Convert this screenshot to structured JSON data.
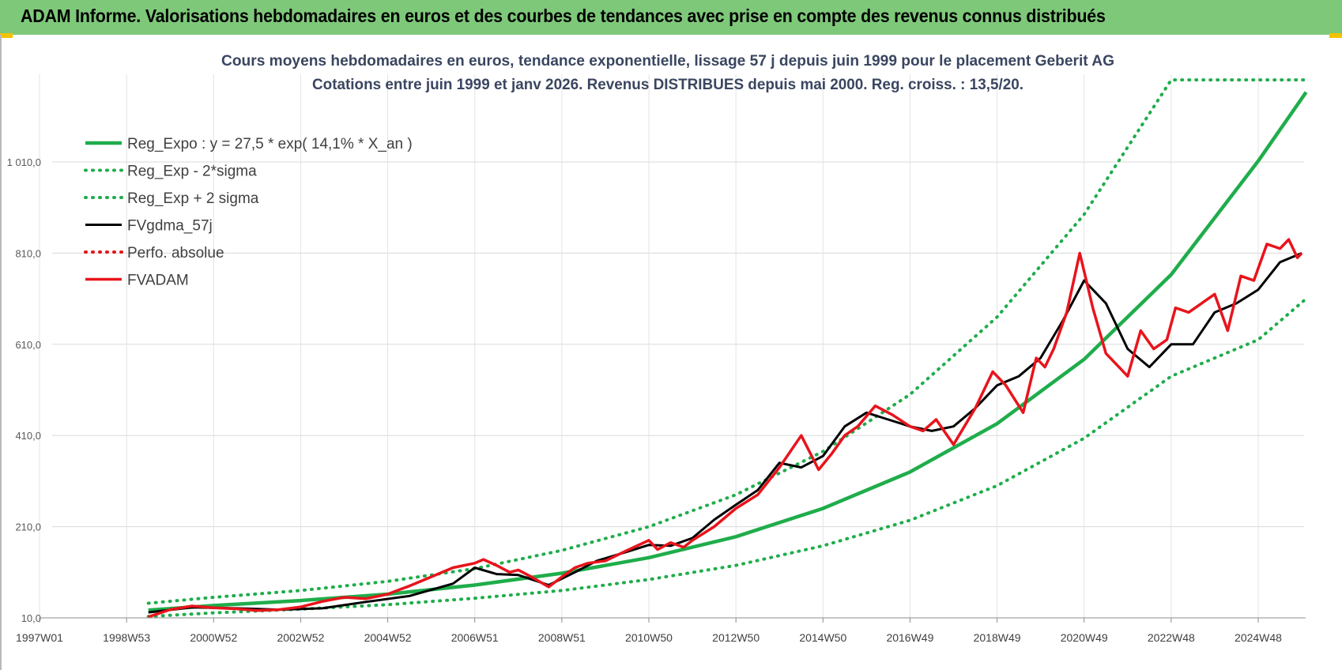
{
  "banner": {
    "title": "ADAM Informe. Valorisations hebdomadaires en euros et des courbes de tendances avec prise en compte des revenus connus distribués",
    "color": "#7ec87a"
  },
  "chart_data": {
    "type": "line",
    "title": "Cours moyens hebdomadaires en euros, tendance exponentielle, lissage 57 j depuis juin 1999 pour le placement Geberit AG",
    "subtitle": "Cotations entre juin 1999 et janv 2026. Revenus DISTRIBUES depuis mai 2000. Reg. croiss. : 13,5/20.",
    "xlabel": "",
    "ylabel": "",
    "x_range": [
      1997.0,
      2025.0
    ],
    "ylim": [
      10,
      1190
    ],
    "y_ticks": [
      10,
      210,
      410,
      610,
      810,
      1010
    ],
    "y_tick_labels": [
      "10,0",
      "210,0",
      "410,0",
      "610,0",
      "810,0",
      "1 010,0"
    ],
    "x_tick_labels": [
      "1997W01",
      "1998W53",
      "2000W52",
      "2002W52",
      "2004W52",
      "2006W51",
      "2008W51",
      "2010W50",
      "2012W50",
      "2014W50",
      "2016W49",
      "2018W49",
      "2020W49",
      "2022W48",
      "2024W48"
    ],
    "x_tick_positions": [
      1997.0,
      1999.0,
      2001.0,
      2003.0,
      2005.0,
      2007.0,
      2009.0,
      2011.0,
      2013.0,
      2015.0,
      2017.0,
      2019.0,
      2021.0,
      2023.0,
      2025.0
    ],
    "grid": true,
    "legend_position": "top-left",
    "series": [
      {
        "name": "Reg_Expo : y = 27,5 * exp( 14,1% *  X_an )",
        "style": "solid",
        "color": "#1fad4b",
        "x": [
          1999.5,
          2001,
          2003,
          2005,
          2007,
          2009,
          2011,
          2013,
          2015,
          2017,
          2019,
          2021,
          2023,
          2025,
          2026.1
        ],
        "values": [
          27,
          37,
          48,
          62,
          82,
          108,
          142,
          188,
          250,
          330,
          436,
          577,
          763,
          1012,
          1163
        ]
      },
      {
        "name": "Reg_Exp - 2*sigma",
        "style": "dotted",
        "color": "#1fad4b",
        "x": [
          1999.5,
          2001,
          2003,
          2005,
          2007,
          2009,
          2011,
          2013,
          2015,
          2017,
          2019,
          2021,
          2023,
          2025,
          2026.1
        ],
        "values": [
          13,
          21,
          29,
          39,
          53,
          70,
          94,
          125,
          168,
          224,
          300,
          404,
          540,
          620,
          710
        ]
      },
      {
        "name": "Reg_Exp + 2 sigma",
        "style": "dotted",
        "color": "#1fad4b",
        "x": [
          1999.5,
          2001,
          2003,
          2005,
          2007,
          2009,
          2011,
          2013,
          2015,
          2017,
          2019,
          2021,
          2023,
          2024,
          2025,
          2026.1
        ],
        "values": [
          42,
          55,
          70,
          90,
          118,
          158,
          210,
          280,
          375,
          500,
          670,
          895,
          1190,
          1190,
          1190,
          1190
        ]
      },
      {
        "name": "FVgdma_57j",
        "style": "solid",
        "color": "#000000",
        "x": [
          1999.5,
          2000.5,
          2001.5,
          2002.5,
          2003.5,
          2004.5,
          2005.5,
          2006.5,
          2007.0,
          2007.5,
          2008.0,
          2008.7,
          2009.3,
          2009.8,
          2010.5,
          2011.0,
          2011.5,
          2012.0,
          2012.5,
          2013.0,
          2013.5,
          2014.0,
          2014.5,
          2015.0,
          2015.5,
          2016.0,
          2016.5,
          2017.0,
          2017.5,
          2018.0,
          2018.5,
          2019.0,
          2019.5,
          2020.0,
          2020.5,
          2021.0,
          2021.5,
          2022.0,
          2022.5,
          2023.0,
          2023.5,
          2024.0,
          2024.5,
          2025.0,
          2025.5,
          2026.0
        ],
        "values": [
          22,
          33,
          31,
          28,
          31,
          45,
          58,
          85,
          120,
          106,
          104,
          82,
          110,
          135,
          155,
          170,
          168,
          185,
          225,
          258,
          290,
          350,
          340,
          365,
          430,
          460,
          445,
          430,
          420,
          430,
          470,
          520,
          540,
          580,
          660,
          750,
          700,
          600,
          560,
          610,
          610,
          680,
          700,
          730,
          790,
          810
        ]
      },
      {
        "name": "Perfo. absolue",
        "style": "dotted",
        "color": "#e8141c",
        "x": [],
        "values": []
      },
      {
        "name": "FVADAM",
        "style": "solid",
        "color": "#e8141c",
        "x": [
          1999.5,
          2000.0,
          2000.5,
          2001.0,
          2001.5,
          2002.0,
          2002.5,
          2003.0,
          2003.5,
          2004.0,
          2004.5,
          2005.0,
          2005.5,
          2006.0,
          2006.5,
          2007.0,
          2007.2,
          2007.5,
          2007.8,
          2008.0,
          2008.3,
          2008.7,
          2009.0,
          2009.3,
          2009.6,
          2010.0,
          2010.5,
          2011.0,
          2011.2,
          2011.5,
          2011.8,
          2012.0,
          2012.5,
          2013.0,
          2013.5,
          2014.0,
          2014.5,
          2014.9,
          2015.2,
          2015.5,
          2015.8,
          2016.2,
          2016.6,
          2017.0,
          2017.3,
          2017.6,
          2018.0,
          2018.5,
          2018.9,
          2019.2,
          2019.6,
          2019.9,
          2020.1,
          2020.3,
          2020.6,
          2020.9,
          2021.2,
          2021.5,
          2021.8,
          2022.0,
          2022.3,
          2022.6,
          2022.9,
          2023.1,
          2023.4,
          2023.7,
          2024.0,
          2024.3,
          2024.6,
          2024.9,
          2025.2,
          2025.5,
          2025.7,
          2025.9,
          2026.0
        ],
        "values": [
          12,
          28,
          36,
          32,
          30,
          26,
          28,
          34,
          46,
          55,
          52,
          62,
          80,
          100,
          120,
          130,
          138,
          125,
          110,
          115,
          100,
          78,
          100,
          120,
          130,
          135,
          158,
          180,
          160,
          175,
          165,
          180,
          210,
          250,
          280,
          340,
          410,
          335,
          370,
          410,
          430,
          475,
          455,
          430,
          420,
          445,
          390,
          470,
          550,
          520,
          460,
          580,
          560,
          600,
          680,
          810,
          690,
          590,
          560,
          540,
          640,
          600,
          620,
          690,
          680,
          700,
          720,
          640,
          760,
          750,
          830,
          820,
          840,
          800,
          810
        ]
      }
    ]
  }
}
